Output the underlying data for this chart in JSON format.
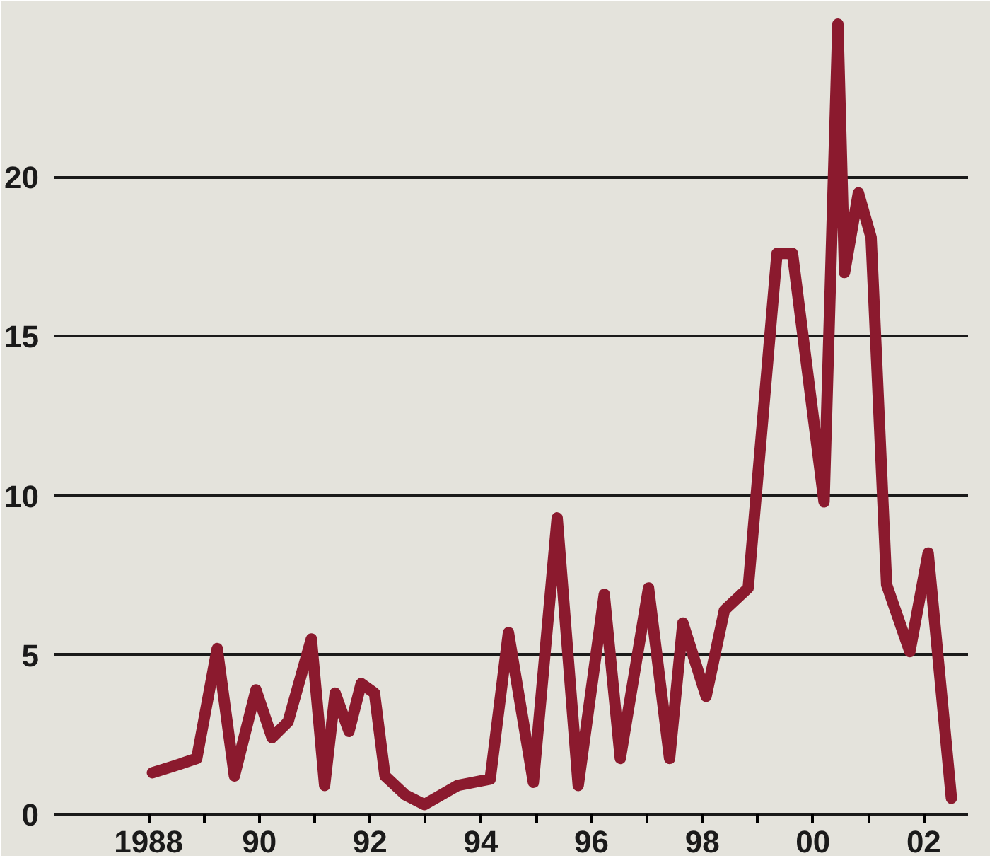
{
  "chart_data": {
    "type": "line",
    "x": [
      1988.07,
      1988.44,
      1988.87,
      1989.24,
      1989.55,
      1989.94,
      1990.23,
      1990.52,
      1990.94,
      1991.18,
      1991.37,
      1991.62,
      1991.84,
      1992.08,
      1992.27,
      1992.64,
      1992.98,
      1993.58,
      1994.17,
      1994.5,
      1994.95,
      1995.38,
      1995.76,
      1996.23,
      1996.52,
      1997.03,
      1997.41,
      1997.65,
      1998.07,
      1998.4,
      1998.83,
      1999.35,
      1999.63,
      2000.2,
      2000.45,
      2000.57,
      2000.82,
      2001.05,
      2001.33,
      2001.75,
      2002.08,
      2002.5
    ],
    "series": [
      {
        "color": "#8b1a2e",
        "values": [
          1.3,
          1.5,
          1.75,
          5.2,
          1.2,
          3.9,
          2.4,
          2.9,
          5.5,
          0.9,
          3.8,
          2.6,
          4.1,
          3.8,
          1.2,
          0.6,
          0.3,
          0.9,
          1.1,
          5.7,
          1.0,
          9.3,
          0.9,
          6.9,
          1.75,
          7.1,
          1.75,
          6.0,
          3.7,
          6.4,
          7.1,
          17.6,
          17.6,
          9.8,
          24.8,
          17.0,
          19.5,
          18.1,
          7.2,
          5.1,
          8.2,
          0.5
        ]
      }
    ],
    "xlim": [
      1986.3,
      2002.8
    ],
    "ylim": [
      0,
      25
    ],
    "xticks": [
      {
        "value": 1988,
        "label": "1988"
      },
      {
        "value": 1989,
        "label": null
      },
      {
        "value": 1990,
        "label": "90"
      },
      {
        "value": 1991,
        "label": null
      },
      {
        "value": 1992,
        "label": "92"
      },
      {
        "value": 1993,
        "label": null
      },
      {
        "value": 1994,
        "label": "94"
      },
      {
        "value": 1995,
        "label": null
      },
      {
        "value": 1996,
        "label": "96"
      },
      {
        "value": 1997,
        "label": null
      },
      {
        "value": 1998,
        "label": "98"
      },
      {
        "value": 1999,
        "label": null
      },
      {
        "value": 2000,
        "label": "00"
      },
      {
        "value": 2001,
        "label": null
      },
      {
        "value": 2002,
        "label": "02"
      }
    ],
    "yticks": [
      0,
      5,
      10,
      15,
      20,
      {
        "value": 25,
        "label": null
      }
    ],
    "grid": "y",
    "marker": "none",
    "line_style": "solid"
  }
}
